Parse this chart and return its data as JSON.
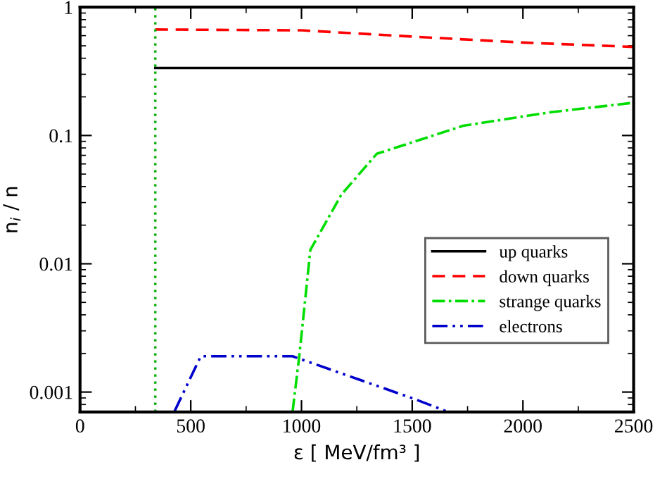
{
  "chart_data": {
    "type": "line",
    "xlabel": "ε [ MeV/fm³ ]",
    "ylabel": "n$_{i}$ / n",
    "log": "y",
    "xlim": [
      0,
      2500
    ],
    "xticks": [
      0,
      500,
      1000,
      1500,
      2000,
      2500
    ],
    "ylim": [
      0.0007,
      1
    ],
    "yticks": [
      0.001,
      0.01,
      0.1,
      1
    ],
    "grid": false,
    "legend": "right",
    "series": [
      {
        "name": "up quarks",
        "color": "#000000",
        "line_style": "solid",
        "x": [
          340,
          1000,
          1500,
          2000,
          2500
        ],
        "values": [
          0.336,
          0.336,
          0.336,
          0.336,
          0.336
        ]
      },
      {
        "name": "down quarks",
        "color": "#ff0000",
        "line_style": "dashed",
        "x": [
          340,
          1000,
          1500,
          2000,
          2500
        ],
        "values": [
          0.67,
          0.66,
          0.59,
          0.53,
          0.49
        ]
      },
      {
        "name": "strange quarks",
        "color": "#00dd00",
        "line_style": "dashdot",
        "x": [
          960,
          990,
          1040,
          1180,
          1340,
          1730,
          2127,
          2500
        ],
        "values": [
          0.00071,
          0.0019,
          0.0128,
          0.0346,
          0.072,
          0.119,
          0.152,
          0.18
        ]
      },
      {
        "name": "electrons",
        "color": "#0000cc",
        "line_style": "dashdotdot",
        "x": [
          427,
          545,
          960,
          1505,
          1653
        ],
        "values": [
          0.00071,
          0.0019,
          0.0019,
          0.00089,
          0.00071
        ]
      }
    ],
    "ref_lines": [
      {
        "axis": "x",
        "value": 340,
        "color": "#00aa00",
        "line_style": "dotted"
      }
    ]
  }
}
